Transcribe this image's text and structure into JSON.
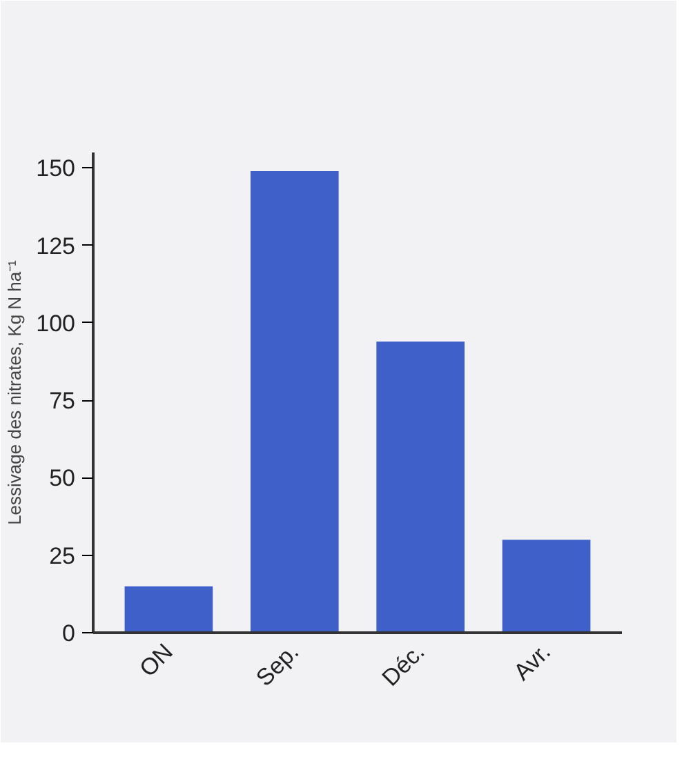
{
  "chart_data": {
    "type": "bar",
    "ylabel": "Lessivage des nitrates, Kg N ha⁻¹",
    "categories": [
      "ON",
      "Sep.",
      "Déc.",
      "Avr."
    ],
    "values": [
      15,
      149,
      94,
      30
    ],
    "color": "#3f60c8",
    "ylim": [
      0,
      155
    ],
    "yticks": [
      0,
      25,
      50,
      75,
      100,
      125,
      150
    ],
    "grid": false
  }
}
